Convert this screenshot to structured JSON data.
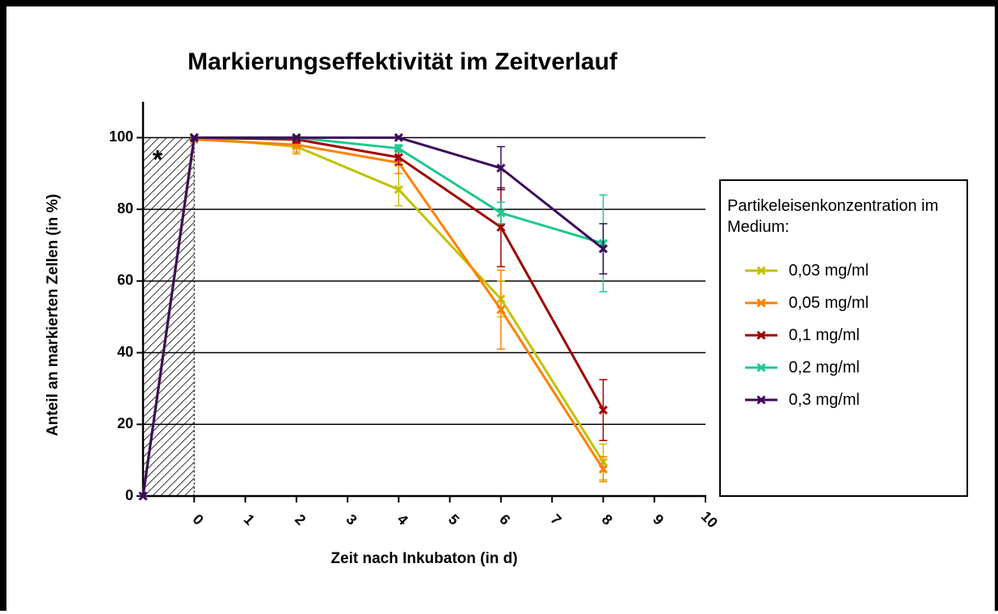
{
  "chart_data": {
    "type": "line",
    "title": "Markierungseffektivität im Zeitverlauf",
    "x_label": "Zeit nach Inkubaton (in d)",
    "y_label": "Anteil an markierten Zellen (in %)",
    "annotation": "*",
    "legend_title": "Partikeleisenkonzentration im Medium:",
    "x": [
      -1,
      0,
      2,
      4,
      6,
      8
    ],
    "series": [
      {
        "name": "0,03 mg/ml",
        "color": "#c2c200",
        "values": [
          0,
          100,
          97.5,
          85.5,
          55,
          9.5
        ],
        "errors": [
          0,
          0,
          1.5,
          4.5,
          5,
          5
        ]
      },
      {
        "name": "0,05 mg/ml",
        "color": "#ff8000",
        "values": [
          0,
          99.5,
          98,
          93,
          52,
          7.5
        ],
        "errors": [
          0,
          0,
          2.5,
          3,
          11,
          3.5
        ]
      },
      {
        "name": "0,1 mg/ml",
        "color": "#a00000",
        "values": [
          0,
          100,
          99.5,
          94.5,
          75,
          24
        ],
        "errors": [
          0,
          0,
          1,
          2,
          11,
          8.5
        ]
      },
      {
        "name": "0,2 mg/ml",
        "color": "#1ec88c",
        "values": [
          0,
          100,
          100,
          97,
          79,
          70.5
        ],
        "errors": [
          0,
          0,
          0.5,
          1,
          3,
          13.5
        ]
      },
      {
        "name": "0,3 mg/ml",
        "color": "#3c0a5a",
        "values": [
          0,
          100,
          100,
          100,
          91.5,
          69
        ],
        "errors": [
          0,
          0,
          0,
          0,
          6,
          7
        ]
      }
    ],
    "xlim": [
      -1,
      10
    ],
    "xticks": [
      0,
      1,
      2,
      3,
      4,
      5,
      6,
      7,
      8,
      9,
      10
    ],
    "ylim": [
      0,
      110
    ],
    "yticks": [
      0,
      20,
      40,
      60,
      80,
      100
    ],
    "grid": true
  }
}
